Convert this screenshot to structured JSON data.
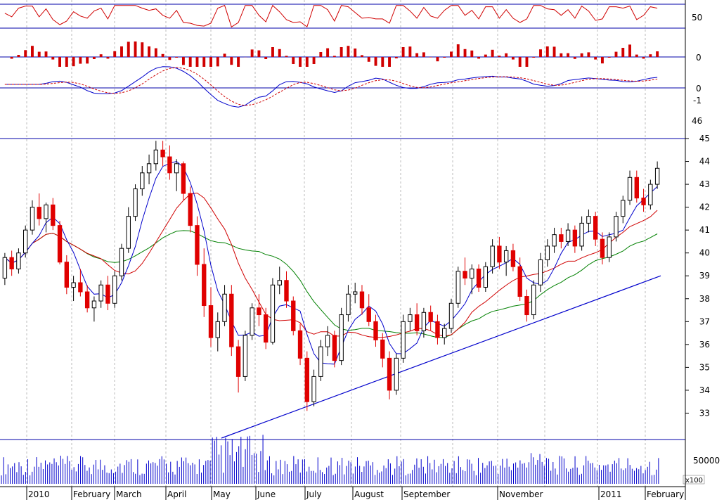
{
  "chart_data": {
    "type": "candlestick",
    "price_panel": {
      "ylim": [
        32,
        45
      ],
      "y_ticks": [
        "33",
        "34",
        "35",
        "36",
        "37",
        "38",
        "39",
        "40",
        "41",
        "42",
        "43",
        "44",
        "45"
      ],
      "candles": [
        [
          38.9,
          40.0,
          38.6,
          39.8
        ],
        [
          39.8,
          40.1,
          39.0,
          39.3
        ],
        [
          39.3,
          40.2,
          39.1,
          40.0
        ],
        [
          40.0,
          41.2,
          39.8,
          41.0
        ],
        [
          41.0,
          42.3,
          40.8,
          42.0
        ],
        [
          42.0,
          42.6,
          41.2,
          41.5
        ],
        [
          41.5,
          42.2,
          40.9,
          42.1
        ],
        [
          42.1,
          42.4,
          41.0,
          41.2
        ],
        [
          41.2,
          41.4,
          39.5,
          39.6
        ],
        [
          39.6,
          39.9,
          38.2,
          38.5
        ],
        [
          38.5,
          39.0,
          37.9,
          38.7
        ],
        [
          38.7,
          39.3,
          38.1,
          38.3
        ],
        [
          38.3,
          38.6,
          37.4,
          37.6
        ],
        [
          37.6,
          38.1,
          37.0,
          37.9
        ],
        [
          37.9,
          38.8,
          37.6,
          38.6
        ],
        [
          38.6,
          39.0,
          37.5,
          37.8
        ],
        [
          37.8,
          39.2,
          37.6,
          39.0
        ],
        [
          39.0,
          40.4,
          38.8,
          40.2
        ],
        [
          40.2,
          42.0,
          40.0,
          41.6
        ],
        [
          41.6,
          43.0,
          41.4,
          42.8
        ],
        [
          42.8,
          43.8,
          42.5,
          43.5
        ],
        [
          43.5,
          44.3,
          43.0,
          43.9
        ],
        [
          43.9,
          44.9,
          43.6,
          44.5
        ],
        [
          44.5,
          44.9,
          43.8,
          44.2
        ],
        [
          44.2,
          44.7,
          43.2,
          43.5
        ],
        [
          43.5,
          44.1,
          42.7,
          43.9
        ],
        [
          43.9,
          44.0,
          42.3,
          42.6
        ],
        [
          42.6,
          42.9,
          40.9,
          41.2
        ],
        [
          41.2,
          41.6,
          39.0,
          39.5
        ],
        [
          39.5,
          40.2,
          37.2,
          37.7
        ],
        [
          37.7,
          38.5,
          35.9,
          36.3
        ],
        [
          36.3,
          37.4,
          35.7,
          37.0
        ],
        [
          37.0,
          38.6,
          36.8,
          38.2
        ],
        [
          38.2,
          38.6,
          35.5,
          35.9
        ],
        [
          35.9,
          36.2,
          33.9,
          34.6
        ],
        [
          34.6,
          36.6,
          34.4,
          36.4
        ],
        [
          36.4,
          37.8,
          36.2,
          37.6
        ],
        [
          37.6,
          38.2,
          36.8,
          37.3
        ],
        [
          37.3,
          37.6,
          35.8,
          36.1
        ],
        [
          36.1,
          38.9,
          36.0,
          38.6
        ],
        [
          38.6,
          39.4,
          38.2,
          38.8
        ],
        [
          38.8,
          39.2,
          37.6,
          37.9
        ],
        [
          37.9,
          38.1,
          36.4,
          36.6
        ],
        [
          36.6,
          36.9,
          35.1,
          35.4
        ],
        [
          35.4,
          35.7,
          33.1,
          33.5
        ],
        [
          33.5,
          34.9,
          33.3,
          34.6
        ],
        [
          34.6,
          36.2,
          34.4,
          35.9
        ],
        [
          35.9,
          36.8,
          35.5,
          36.4
        ],
        [
          36.4,
          36.6,
          35.0,
          35.3
        ],
        [
          35.3,
          37.6,
          35.1,
          37.3
        ],
        [
          37.3,
          38.6,
          37.0,
          38.2
        ],
        [
          38.2,
          38.7,
          37.8,
          38.3
        ],
        [
          38.3,
          38.6,
          37.3,
          37.6
        ],
        [
          37.6,
          38.2,
          36.8,
          37.0
        ],
        [
          37.0,
          37.3,
          35.9,
          36.2
        ],
        [
          36.2,
          36.5,
          35.0,
          35.4
        ],
        [
          35.4,
          35.7,
          33.6,
          34.0
        ],
        [
          34.0,
          35.6,
          33.8,
          35.4
        ],
        [
          35.4,
          37.3,
          35.2,
          37.0
        ],
        [
          37.0,
          37.6,
          36.6,
          37.3
        ],
        [
          37.3,
          37.8,
          36.4,
          36.6
        ],
        [
          36.6,
          37.6,
          36.3,
          37.4
        ],
        [
          37.4,
          37.7,
          36.6,
          37.0
        ],
        [
          37.0,
          37.3,
          36.0,
          36.3
        ],
        [
          36.3,
          36.9,
          36.0,
          36.7
        ],
        [
          36.7,
          38.0,
          36.5,
          37.8
        ],
        [
          37.8,
          39.4,
          37.6,
          39.2
        ],
        [
          39.2,
          39.8,
          38.6,
          38.9
        ],
        [
          38.9,
          39.5,
          38.2,
          39.3
        ],
        [
          39.3,
          39.5,
          38.3,
          38.5
        ],
        [
          38.5,
          39.6,
          38.3,
          39.4
        ],
        [
          39.4,
          40.6,
          39.1,
          40.3
        ],
        [
          40.3,
          40.7,
          39.3,
          39.6
        ],
        [
          39.6,
          40.3,
          39.0,
          40.1
        ],
        [
          40.1,
          40.4,
          39.2,
          39.4
        ],
        [
          39.4,
          39.8,
          37.9,
          38.1
        ],
        [
          38.1,
          38.4,
          37.0,
          37.3
        ],
        [
          37.3,
          38.8,
          37.1,
          38.6
        ],
        [
          38.6,
          40.0,
          38.3,
          39.7
        ],
        [
          39.7,
          40.6,
          39.4,
          40.3
        ],
        [
          40.3,
          41.1,
          40.0,
          40.8
        ],
        [
          40.8,
          41.1,
          40.2,
          40.5
        ],
        [
          40.5,
          41.3,
          40.3,
          41.0
        ],
        [
          41.0,
          41.2,
          40.0,
          40.3
        ],
        [
          40.3,
          41.6,
          40.1,
          41.3
        ],
        [
          41.3,
          41.9,
          40.9,
          41.6
        ],
        [
          41.6,
          41.8,
          40.3,
          40.6
        ],
        [
          40.6,
          40.9,
          39.5,
          39.8
        ],
        [
          39.8,
          40.9,
          39.6,
          40.7
        ],
        [
          40.7,
          41.8,
          40.5,
          41.6
        ],
        [
          41.6,
          42.5,
          41.3,
          42.3
        ],
        [
          42.3,
          43.6,
          42.1,
          43.3
        ],
        [
          43.3,
          43.6,
          42.2,
          42.4
        ],
        [
          42.4,
          42.8,
          41.8,
          42.1
        ],
        [
          42.1,
          43.2,
          41.9,
          43.0
        ],
        [
          43.0,
          44.0,
          42.8,
          43.7
        ]
      ]
    },
    "trendline": [
      [
        33.0,
        32.0
      ],
      [
        39.0,
        44.0
      ]
    ],
    "volume_panel": {
      "y_tick": "50000",
      "unit_label": "x100"
    },
    "indicator_ticks": {
      "rsi": [
        "50"
      ],
      "histogram": [
        "0"
      ],
      "macd": [
        "0",
        "-1"
      ],
      "extra": [
        "46"
      ]
    },
    "x_labels": [
      "2010",
      "February",
      "March",
      "April",
      "May",
      "June",
      "July",
      "August",
      "September",
      "November",
      "2011",
      "February"
    ],
    "colors": {
      "up": "#000000",
      "down": "#e00000",
      "ma_short": "#0000cc",
      "ma_mid": "#d00000",
      "ma_long": "#008000",
      "trend": "#0000cc",
      "rsi": "#d00000",
      "hist": "#d00000",
      "macd": "#0000cc",
      "signal": "#d00000"
    }
  }
}
